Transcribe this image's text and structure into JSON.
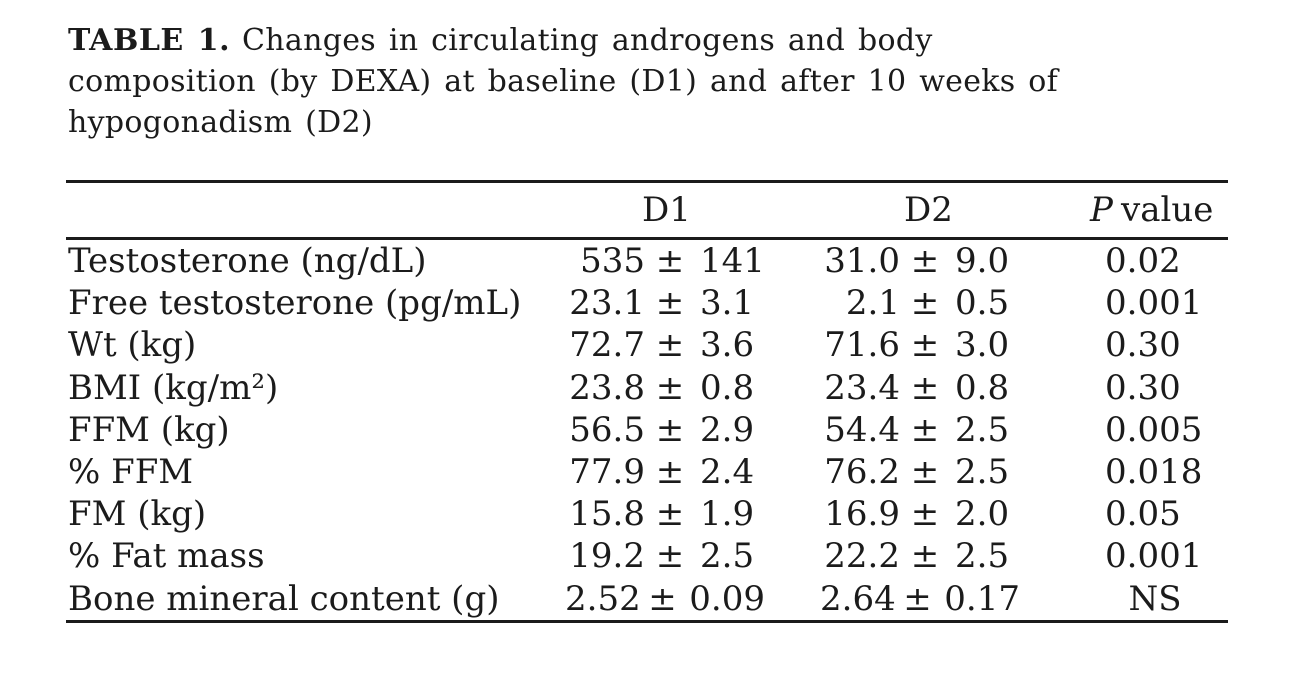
{
  "colors": {
    "ink": "#1b1b1b",
    "background": "#ffffff"
  },
  "title": {
    "label": "TABLE 1.",
    "line1": "Changes in circulating androgens and body",
    "line2": "composition (by DEXA) at baseline (D1) and after 10 weeks of",
    "line3": "hypogonadism (D2)"
  },
  "table": {
    "plus_minus": "±",
    "headers": {
      "label": "",
      "d1": "D1",
      "d2": "D2",
      "p_italic": "P",
      "p_rest": "value"
    },
    "rows": [
      {
        "label": "Testosterone (ng/dL)",
        "d1": [
          "535",
          "141"
        ],
        "d2": [
          "31.0",
          "9.0"
        ],
        "p": "0.02"
      },
      {
        "label": "Free testosterone (pg/mL)",
        "d1": [
          "23.1",
          "3.1"
        ],
        "d2": [
          "2.1",
          "0.5"
        ],
        "p": "0.001"
      },
      {
        "label": "Wt (kg)",
        "d1": [
          "72.7",
          "3.6"
        ],
        "d2": [
          "71.6",
          "3.0"
        ],
        "p": "0.30"
      },
      {
        "label": "BMI (kg/m²)",
        "d1": [
          "23.8",
          "0.8"
        ],
        "d2": [
          "23.4",
          "0.8"
        ],
        "p": "0.30"
      },
      {
        "label": "FFM (kg)",
        "d1": [
          "56.5",
          "2.9"
        ],
        "d2": [
          "54.4",
          "2.5"
        ],
        "p": "0.005"
      },
      {
        "label": "% FFM",
        "d1": [
          "77.9",
          "2.4"
        ],
        "d2": [
          "76.2",
          "2.5"
        ],
        "p": "0.018"
      },
      {
        "label": "FM (kg)",
        "d1": [
          "15.8",
          "1.9"
        ],
        "d2": [
          "16.9",
          "2.0"
        ],
        "p": "0.05"
      },
      {
        "label": "% Fat mass",
        "d1": [
          "19.2",
          "2.5"
        ],
        "d2": [
          "22.2",
          "2.5"
        ],
        "p": "0.001"
      },
      {
        "label": "Bone mineral content (g)",
        "d1": [
          "2.52",
          "0.09"
        ],
        "d2": [
          "2.64",
          "0.17"
        ],
        "p": "NS",
        "p_align": "center"
      }
    ]
  }
}
